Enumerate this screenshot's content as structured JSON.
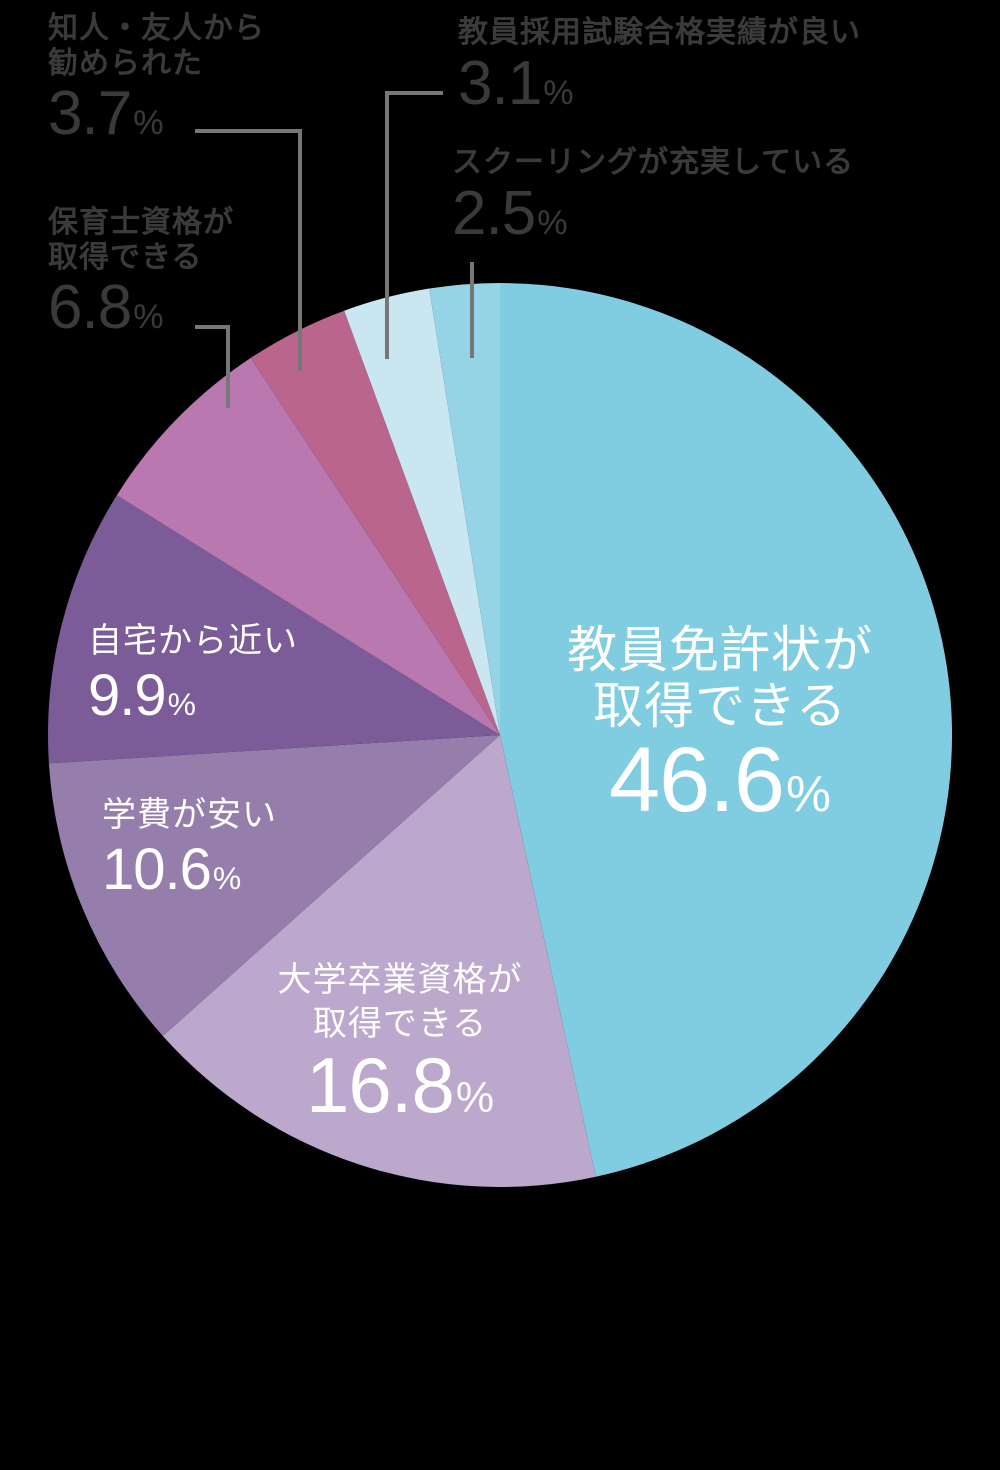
{
  "chart_data": {
    "type": "pie",
    "title": "",
    "start_angle_deg": 0,
    "direction": "clockwise",
    "unit": "%",
    "slices": [
      {
        "label": "教員免許状が取得できる",
        "value": 46.6,
        "color": "#80cde2",
        "label_lines": [
          "教員免許状が",
          "取得できる"
        ],
        "label_position": "inside"
      },
      {
        "label": "大学卒業資格が取得できる",
        "value": 16.8,
        "color": "#bba8cc",
        "label_lines": [
          "大学卒業資格が",
          "取得できる"
        ],
        "label_position": "inside"
      },
      {
        "label": "学費が安い",
        "value": 10.6,
        "color": "#957eac",
        "label_lines": [
          "学費が安い"
        ],
        "label_position": "inside"
      },
      {
        "label": "自宅から近い",
        "value": 9.9,
        "color": "#7b5b98",
        "label_lines": [
          "自宅から近い"
        ],
        "label_position": "inside"
      },
      {
        "label": "保育士資格が取得できる",
        "value": 6.8,
        "color": "#b978b0",
        "label_lines": [
          "保育士資格が",
          "取得できる"
        ],
        "label_position": "outside"
      },
      {
        "label": "知人・友人から勧められた",
        "value": 3.7,
        "color": "#b9658e",
        "label_lines": [
          "知人・友人から",
          "勧められた"
        ],
        "label_position": "outside"
      },
      {
        "label": "教員採用試験合格実績が良い",
        "value": 3.1,
        "color": "#cae7f1",
        "label_lines": [
          "教員採用試験合格実績が良い"
        ],
        "label_position": "outside"
      },
      {
        "label": "スクーリングが充実している",
        "value": 2.5,
        "color": "#95d4e7",
        "label_lines": [
          "スクーリングが充実している"
        ],
        "label_position": "outside"
      }
    ],
    "background": "#000000",
    "leader_line_color": "#777777",
    "outside_label_color": "#3a3a3a",
    "inside_label_color": "#ffffff"
  },
  "labels": {
    "teacher_license": {
      "line1": "教員免許状が",
      "line2": "取得できる",
      "value": "46.6",
      "unit": "%"
    },
    "university_degree": {
      "line1": "大学卒業資格が",
      "line2": "取得できる",
      "value": "16.8",
      "unit": "%"
    },
    "low_tuition": {
      "line1": "学費が安い",
      "value": "10.6",
      "unit": "%"
    },
    "close_to_home": {
      "line1": "自宅から近い",
      "value": "9.9",
      "unit": "%"
    },
    "childcare_license": {
      "line1": "保育士資格が",
      "line2": "取得できる",
      "value": "6.8",
      "unit": "%"
    },
    "recommended": {
      "line1": "知人・友人から",
      "line2": "勧められた",
      "value": "3.7",
      "unit": "%"
    },
    "hiring_exam_record": {
      "line1": "教員採用試験合格実績が良い",
      "value": "3.1",
      "unit": "%"
    },
    "schooling": {
      "line1": "スクーリングが充実している",
      "value": "2.5",
      "unit": "%"
    }
  }
}
